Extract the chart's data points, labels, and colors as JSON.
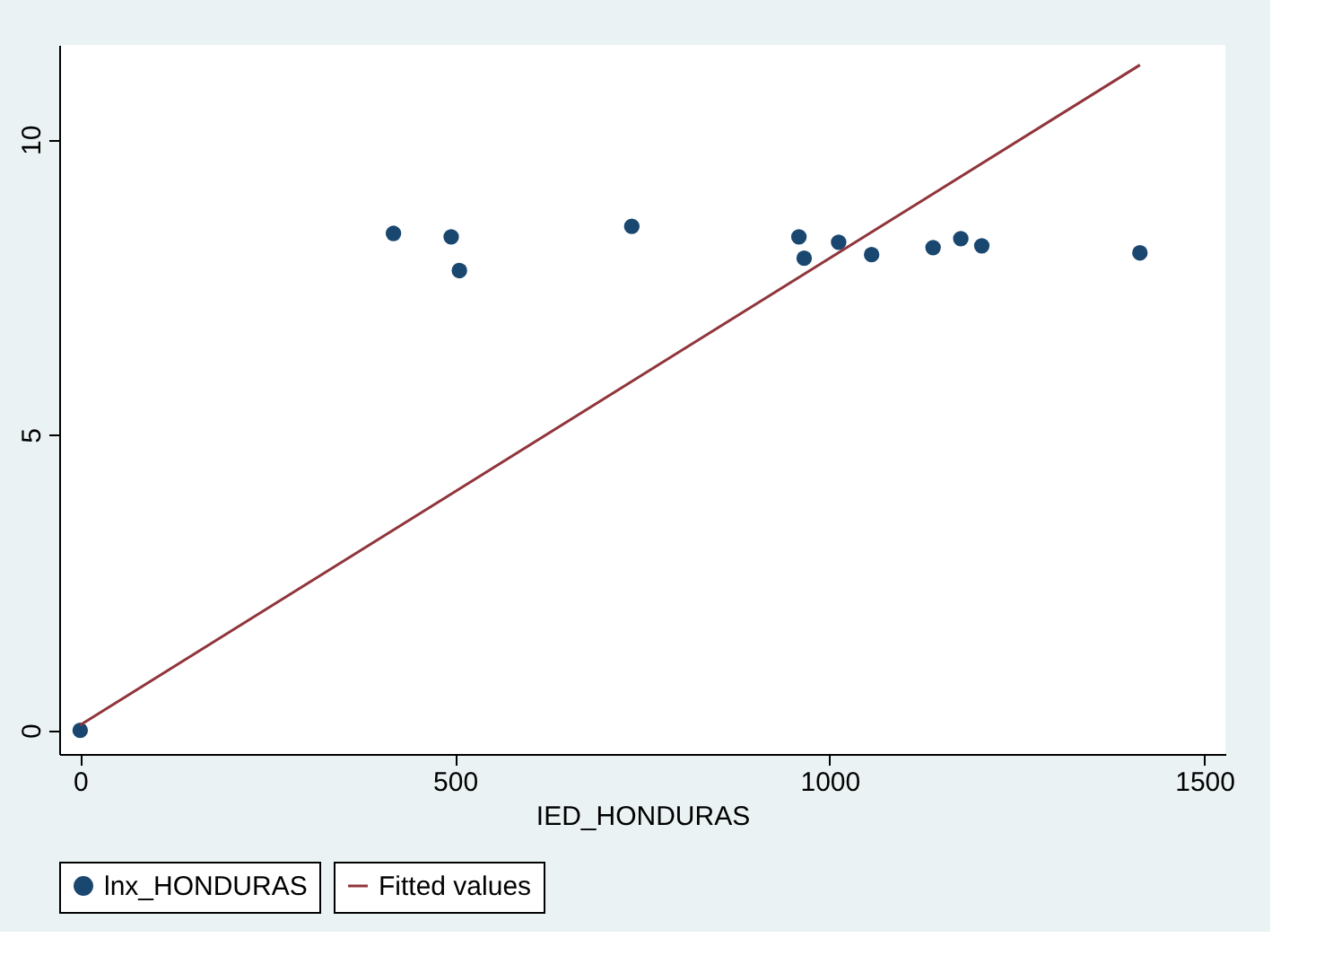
{
  "chart_data": {
    "type": "scatter",
    "xlabel": "IED_HONDURAS",
    "xlim": [
      -28,
      1528
    ],
    "ylim": [
      -0.4,
      11.6
    ],
    "xticks": [
      0,
      500,
      1000,
      1500
    ],
    "yticks": [
      0,
      5,
      10
    ],
    "grid": false,
    "legend": "bottom",
    "series": [
      {
        "name": "lnx_HONDURAS",
        "marker": "circle",
        "color": "#1a476f",
        "x": [
          0,
          418,
          495,
          506,
          736,
          959,
          966,
          1012,
          1056,
          1138,
          1175,
          1203,
          1414
        ],
        "values": [
          0,
          8.41,
          8.35,
          7.78,
          8.53,
          8.35,
          7.99,
          8.26,
          8.05,
          8.17,
          8.32,
          8.2,
          8.08
        ]
      },
      {
        "name": "Fitted values",
        "type": "line",
        "color": "#90353b",
        "line_style": "solid",
        "x": [
          0,
          1414
        ],
        "values": [
          0.09,
          11.26
        ]
      }
    ]
  }
}
